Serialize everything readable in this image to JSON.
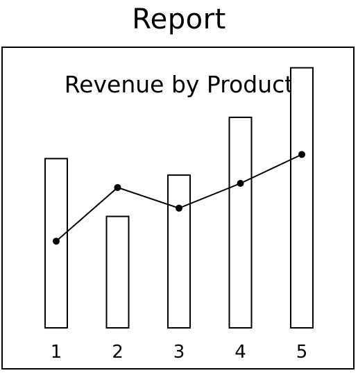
{
  "page": {
    "title": "Report"
  },
  "chart_data": {
    "type": "bar",
    "title": "Revenue by Product",
    "categories": [
      "1",
      "2",
      "3",
      "4",
      "5"
    ],
    "series": [
      {
        "type": "bar",
        "values": [
          4.1,
          2.7,
          3.7,
          5.1,
          6.3
        ]
      },
      {
        "type": "line",
        "values": [
          2.1,
          3.4,
          2.9,
          3.5,
          4.2
        ]
      }
    ],
    "ylim": [
      0,
      7
    ],
    "grid": false,
    "colors": {
      "bar_fill": "#ffffff",
      "bar_stroke": "#000000",
      "line": "#000000"
    }
  }
}
